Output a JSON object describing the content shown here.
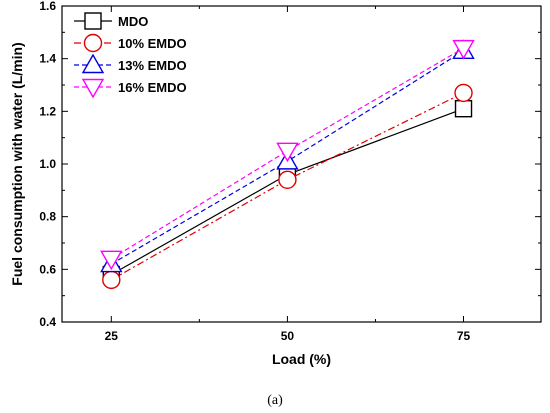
{
  "chart_data": {
    "type": "line",
    "xlabel": "Load (%)",
    "ylabel": "Fuel consumption with water (L/min)",
    "caption": "(a)",
    "x": [
      25,
      50,
      75
    ],
    "x_ticks": [
      "25",
      "50",
      "75"
    ],
    "xlim": [
      18,
      86
    ],
    "ylim": [
      0.4,
      1.6
    ],
    "y_ticks": [
      "0.4",
      "0.6",
      "0.8",
      "1.0",
      "1.2",
      "1.4",
      "1.6"
    ],
    "grid": false,
    "legend_position": "top-left",
    "series": [
      {
        "name": "MDO",
        "values": [
          0.58,
          0.96,
          1.21
        ],
        "color": "#000000",
        "marker": "square",
        "dash": "solid"
      },
      {
        "name": "10% EMDO",
        "values": [
          0.56,
          0.94,
          1.27
        ],
        "color": "#e00000",
        "marker": "circle",
        "dash": "dashdot"
      },
      {
        "name": "13% EMDO",
        "values": [
          0.62,
          1.01,
          1.43
        ],
        "color": "#0000e0",
        "marker": "triangle-up",
        "dash": "dashed"
      },
      {
        "name": "16% EMDO",
        "values": [
          0.64,
          1.05,
          1.44
        ],
        "color": "#ff00ff",
        "marker": "triangle-down",
        "dash": "dashed"
      }
    ]
  }
}
